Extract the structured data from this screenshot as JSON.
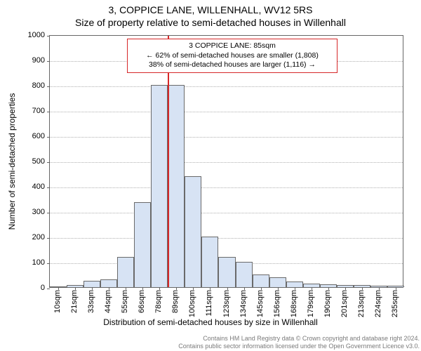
{
  "title_line1": "3, COPPICE LANE, WILLENHALL, WV12 5RS",
  "title_line2": "Size of property relative to semi-detached houses in Willenhall",
  "y_axis_label": "Number of semi-detached properties",
  "x_axis_label": "Distribution of semi-detached houses by size in Willenhall",
  "footer_line1": "Contains HM Land Registry data © Crown copyright and database right 2024.",
  "footer_line2": "Contains public sector information licensed under the Open Government Licence v3.0.",
  "chart": {
    "type": "histogram",
    "background_color": "#ffffff",
    "border_color": "#666666",
    "grid_color": "#b0b0b0",
    "bar_fill": "#d7e3f4",
    "bar_stroke": "#6a6a6a",
    "vline_color": "#d62728",
    "vline_width": 2,
    "ylim": [
      0,
      1000
    ],
    "ytick_step": 100,
    "x_categories": [
      "10sqm",
      "21sqm",
      "33sqm",
      "44sqm",
      "55sqm",
      "66sqm",
      "78sqm",
      "89sqm",
      "100sqm",
      "111sqm",
      "123sqm",
      "134sqm",
      "145sqm",
      "156sqm",
      "168sqm",
      "179sqm",
      "190sqm",
      "201sqm",
      "213sqm",
      "224sqm",
      "235sqm"
    ],
    "values": [
      0,
      8,
      25,
      30,
      120,
      335,
      800,
      800,
      440,
      200,
      120,
      100,
      50,
      40,
      22,
      15,
      10,
      8,
      7,
      6,
      5
    ],
    "vline_index": 7,
    "title_fontsize": 14,
    "label_fontsize": 12,
    "tick_fontsize": 11,
    "annotation": {
      "line1": "3 COPPICE LANE: 85sqm",
      "line2": "← 62% of semi-detached houses are smaller (1,808)",
      "line3": "38% of semi-detached houses are larger (1,116) →",
      "border_color": "#d62728",
      "background": "#ffffff",
      "fontsize": 10.5
    }
  }
}
